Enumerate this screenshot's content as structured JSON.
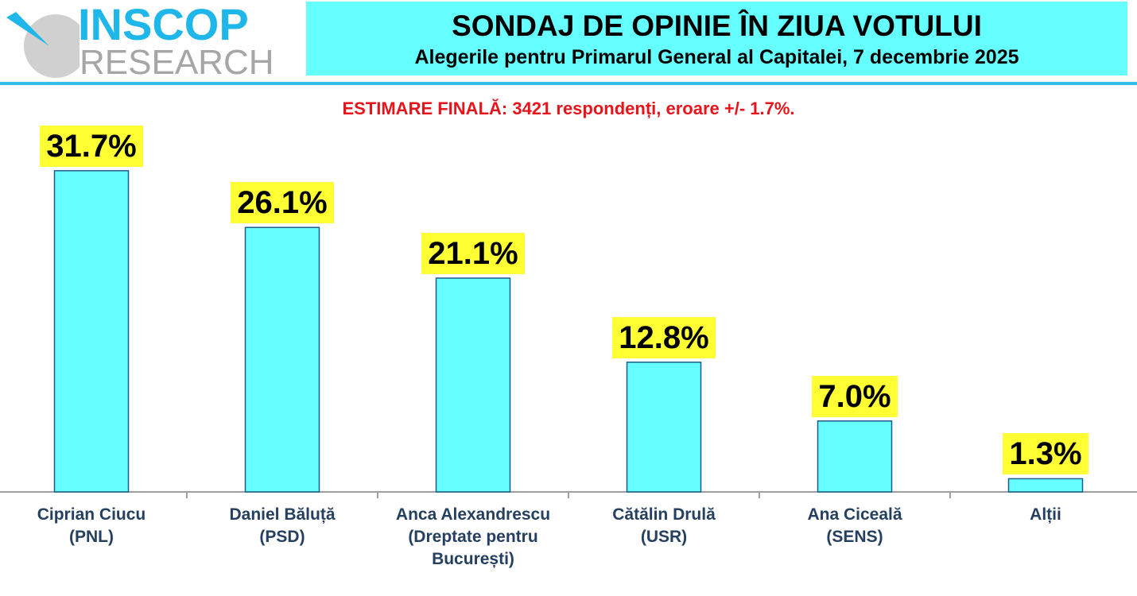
{
  "logo": {
    "line1": "INSCOP",
    "line2": "RESEARCH",
    "colors": {
      "blue": "#1fb6ea",
      "gray": "#a6a6a6",
      "circle": "#d0d0d0"
    }
  },
  "header": {
    "title": "SONDAJ DE OPINIE ÎN ZIUA VOTULUI",
    "subtitle": "Alegerile pentru Primarul General al Capitalei, 7 decembrie 2025"
  },
  "note": "ESTIMARE FINALĂ: 3421 respondenți, eroare +/- 1.7%.",
  "chart_data": {
    "type": "bar",
    "categories": [
      [
        "Ciprian Ciucu",
        "(PNL)"
      ],
      [
        "Daniel Băluță",
        "(PSD)"
      ],
      [
        "Anca Alexandrescu",
        "(Dreptate pentru",
        "București)"
      ],
      [
        "Cătălin Drulă",
        "(USR)"
      ],
      [
        "Ana Ciceală",
        "(SENS)"
      ],
      [
        "Alții"
      ]
    ],
    "values": [
      31.7,
      26.1,
      21.1,
      12.8,
      7.0,
      1.3
    ],
    "data_labels": [
      "31.7%",
      "26.1%",
      "21.1%",
      "12.8%",
      "7.0%",
      "1.3%"
    ],
    "ylim": [
      0,
      35
    ],
    "grid": false,
    "colors": {
      "bar": "#66ffff",
      "bar_border": "#1f5c8a",
      "label_bg": "#ffff33"
    }
  }
}
